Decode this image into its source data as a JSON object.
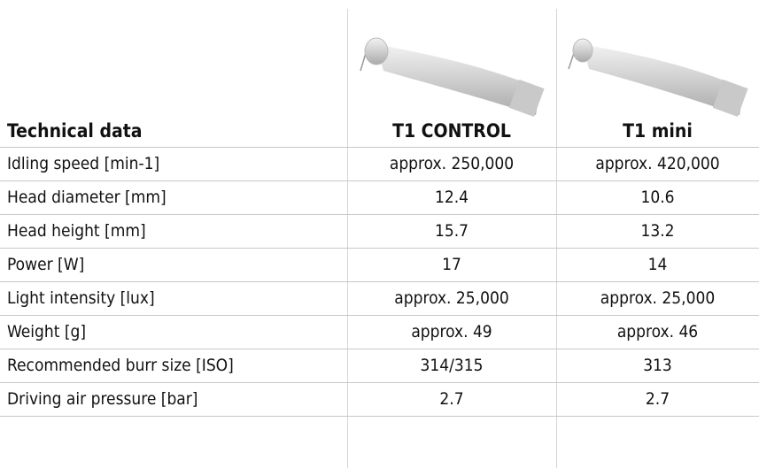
{
  "table": {
    "header": [
      "Technical data",
      "T1 CONTROL",
      "T1 mini"
    ],
    "rows": [
      [
        "Idling speed [min-1]",
        "approx. 250,000",
        "approx. 420,000"
      ],
      [
        "Head diameter [mm]",
        "12.4",
        "10.6"
      ],
      [
        "Head height [mm]",
        "15.7",
        "13.2"
      ],
      [
        "Power [W]",
        "17",
        "14"
      ],
      [
        "Light intensity [lux]",
        "approx. 25,000",
        "approx. 25,000"
      ],
      [
        "Weight [g]",
        "approx. 49",
        "approx. 46"
      ],
      [
        "Recommended burr size [ISO]",
        "314/315",
        "313"
      ],
      [
        "Driving air pressure [bar]",
        "2.7",
        "2.7"
      ]
    ]
  }
}
